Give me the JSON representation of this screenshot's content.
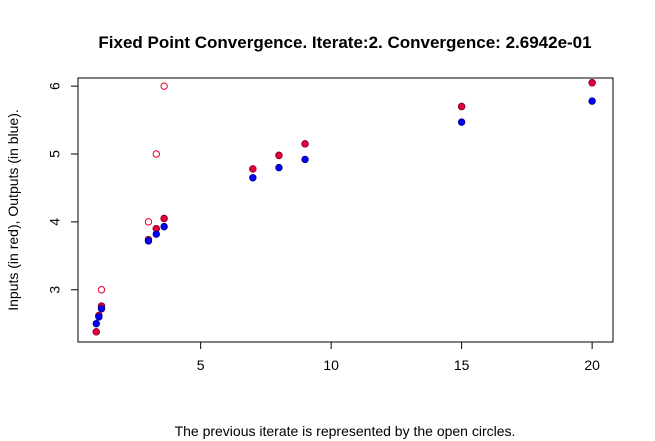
{
  "chart_data": {
    "type": "scatter",
    "title": "Fixed Point Convergence. Iterate:2. Convergence: 2.6942e-01",
    "xlabel": "The previous iterate is represented by the open circles.",
    "ylabel": "Inputs (in red), Outputs (in blue).",
    "xlim": [
      0.3,
      20.8
    ],
    "ylim": [
      2.23,
      6.12
    ],
    "x_ticks": [
      5,
      10,
      15,
      20
    ],
    "y_ticks": [
      3,
      4,
      5,
      6
    ],
    "grid": false,
    "series": [
      {
        "name": "Inputs (in red)",
        "marker": "open-circle",
        "color": "#e0002a",
        "points": [
          [
            1.0,
            2.38
          ],
          [
            1.1,
            2.62
          ],
          [
            1.2,
            2.76
          ],
          [
            1.2,
            3.0
          ],
          [
            3.0,
            4.0
          ],
          [
            3.3,
            5.0
          ],
          [
            3.6,
            6.0
          ],
          [
            3.3,
            3.9
          ],
          [
            3.6,
            4.05
          ],
          [
            7.0,
            4.78
          ],
          [
            8.0,
            4.98
          ],
          [
            9.0,
            5.15
          ],
          [
            15.0,
            5.7
          ],
          [
            20.0,
            6.05
          ]
        ]
      },
      {
        "name": "Inputs (in red)",
        "marker": "filled-circle",
        "color": "#e0003c",
        "points": [
          [
            1.0,
            2.38
          ],
          [
            1.1,
            2.62
          ],
          [
            1.2,
            2.76
          ],
          [
            3.0,
            3.74
          ],
          [
            3.3,
            3.9
          ],
          [
            3.6,
            4.05
          ],
          [
            7.0,
            4.78
          ],
          [
            8.0,
            4.98
          ],
          [
            9.0,
            5.15
          ],
          [
            15.0,
            5.7
          ],
          [
            20.0,
            6.05
          ]
        ]
      },
      {
        "name": "Outputs (in blue)",
        "marker": "filled-circle",
        "color": "#0000ff",
        "points": [
          [
            1.0,
            2.5
          ],
          [
            1.1,
            2.6
          ],
          [
            1.2,
            2.72
          ],
          [
            3.0,
            3.72
          ],
          [
            3.3,
            3.82
          ],
          [
            3.6,
            3.93
          ],
          [
            7.0,
            4.65
          ],
          [
            8.0,
            4.8
          ],
          [
            9.0,
            4.92
          ],
          [
            15.0,
            5.47
          ],
          [
            20.0,
            5.78
          ]
        ]
      }
    ]
  }
}
